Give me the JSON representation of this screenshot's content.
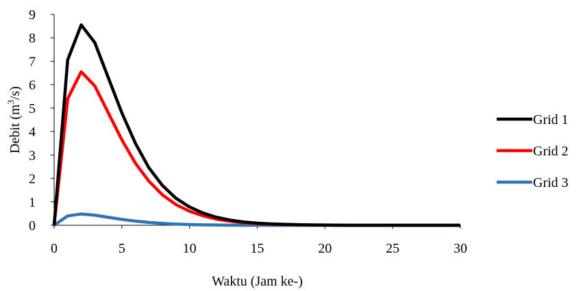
{
  "chart_data": {
    "type": "line",
    "xlabel": "Waktu (Jam ke-)",
    "ylabel": {
      "prefix": "Debit (m",
      "superscript": "3",
      "suffix": "/s)"
    },
    "xlim": [
      0,
      30
    ],
    "ylim": [
      0,
      9
    ],
    "xticks": [
      0,
      5,
      10,
      15,
      20,
      25,
      30
    ],
    "yticks": [
      0,
      1,
      2,
      3,
      4,
      5,
      6,
      7,
      8,
      9
    ],
    "grid": false,
    "legend_position": "right",
    "x": [
      0,
      1,
      2,
      3,
      4,
      5,
      6,
      7,
      8,
      9,
      10,
      11,
      12,
      13,
      14,
      15,
      16,
      17,
      18,
      19,
      20,
      21,
      22,
      23,
      24,
      25,
      26,
      27,
      28,
      29,
      30
    ],
    "series": [
      {
        "name": "Grid 1",
        "color": "#000000",
        "values": [
          0,
          7.05,
          8.55,
          7.8,
          6.3,
          4.8,
          3.5,
          2.45,
          1.7,
          1.15,
          0.78,
          0.52,
          0.34,
          0.22,
          0.14,
          0.09,
          0.06,
          0.04,
          0.025,
          0.015,
          0.01,
          0.005,
          0,
          0,
          0,
          0,
          0,
          0,
          0,
          0,
          0
        ]
      },
      {
        "name": "Grid 2",
        "color": "#ff0000",
        "values": [
          0,
          5.4,
          6.55,
          5.95,
          4.8,
          3.65,
          2.65,
          1.88,
          1.3,
          0.88,
          0.6,
          0.4,
          0.26,
          0.17,
          0.11,
          0.07,
          0.045,
          0.03,
          0.02,
          0.01,
          0.005,
          0,
          0,
          0,
          0,
          0,
          0,
          0,
          0,
          0,
          0
        ]
      },
      {
        "name": "Grid 3",
        "color": "#2e75b6",
        "values": [
          0,
          0.4,
          0.48,
          0.43,
          0.34,
          0.25,
          0.18,
          0.12,
          0.08,
          0.05,
          0.03,
          0.02,
          0.01,
          0.005,
          0,
          0,
          0,
          0,
          0,
          0,
          0,
          0,
          0,
          0,
          0,
          0,
          0,
          0,
          0,
          0,
          0
        ]
      }
    ]
  }
}
